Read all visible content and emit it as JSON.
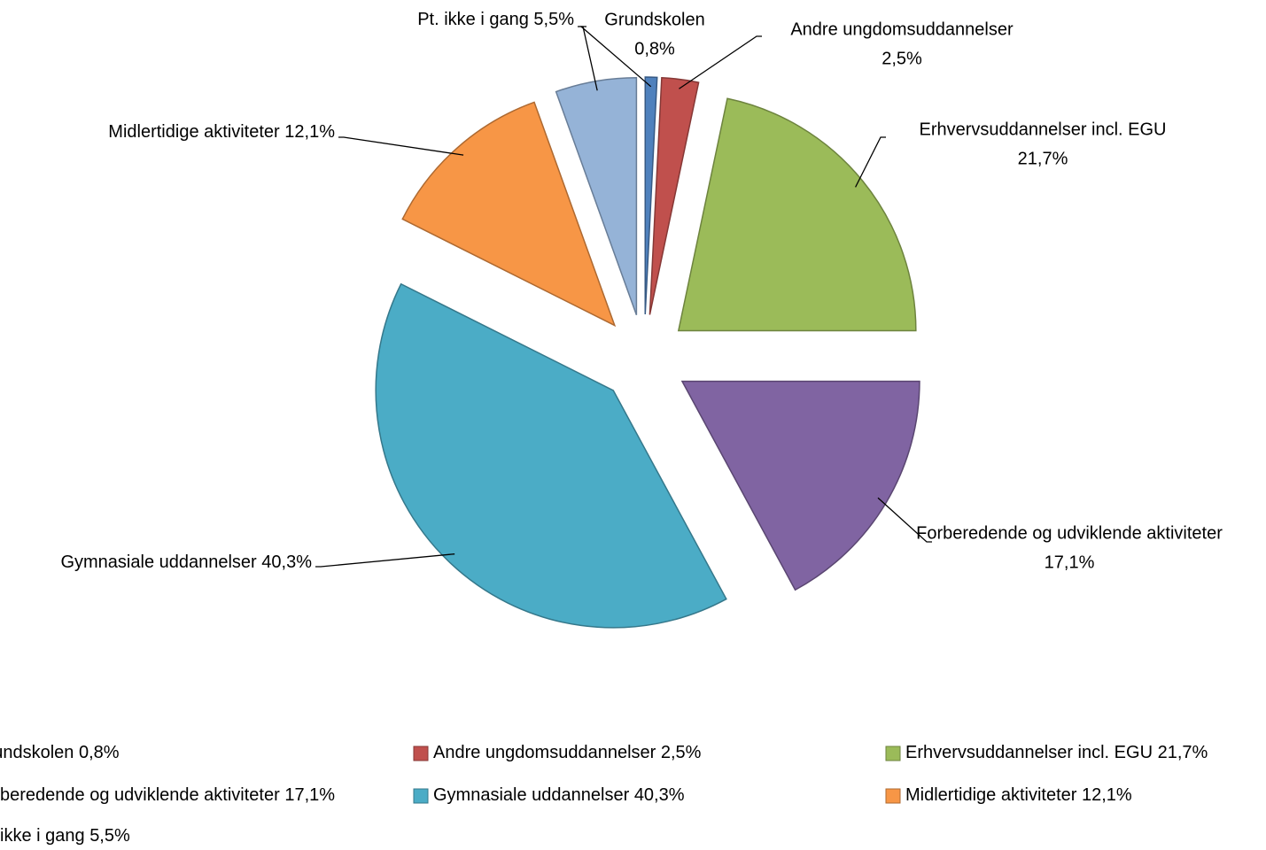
{
  "chart_data": {
    "type": "pie",
    "categories": [
      "Grundskolen",
      "Andre ungdomsuddannelser",
      "Erhvervsuddannelser incl. EGU",
      "Forberedende og udviklende aktiviteter",
      "Gymnasiale uddannelser",
      "Midlertidige aktiviteter",
      "Pt. ikke i gang"
    ],
    "values": [
      0.8,
      2.5,
      21.7,
      17.1,
      40.3,
      12.1,
      5.5
    ],
    "value_labels": [
      "0,8%",
      "2,5%",
      "21,7%",
      "17,1%",
      "40,3%",
      "12,1%",
      "5,5%"
    ],
    "colors": [
      "#4f81bd",
      "#c0504d",
      "#9bbb59",
      "#8064a2",
      "#4bacc6",
      "#f79646",
      "#95b3d7"
    ],
    "legend": "bottom"
  }
}
